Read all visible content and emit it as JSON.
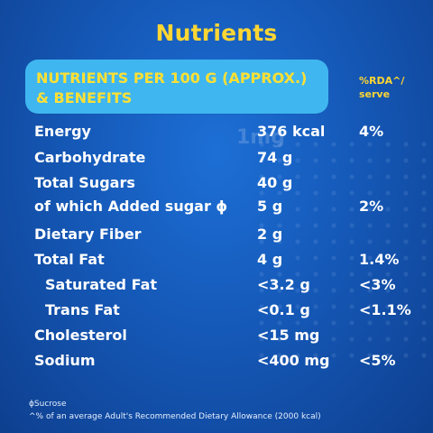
{
  "title": "Nutrients",
  "header": {
    "line1": "NUTRIENTS PER 100 G (APPROX.)",
    "line2": "& BENEFITS",
    "rda_line1": "%RDA^/",
    "rda_line2": "serve"
  },
  "watermark": "1mg",
  "rows": [
    {
      "name": "Energy",
      "value": "376 kcal",
      "rda": "4%"
    },
    {
      "name": "Carbohydrate",
      "value": "74 g",
      "rda": ""
    },
    {
      "name": "Total Sugars",
      "value": "40 g",
      "rda": ""
    },
    {
      "name": "of which Added sugar ϕ",
      "value": "5 g",
      "rda": "2%"
    },
    {
      "name": "Dietary Fiber",
      "value": "2 g",
      "rda": ""
    },
    {
      "name": "Total Fat",
      "value": "4 g",
      "rda": "1.4%"
    },
    {
      "name": "Saturated Fat",
      "value": "<3.2 g",
      "rda": "<3%"
    },
    {
      "name": "Trans Fat",
      "value": "<0.1 g",
      "rda": "<1.1%"
    },
    {
      "name": "Cholesterol",
      "value": "<15 mg",
      "rda": ""
    },
    {
      "name": "Sodium",
      "value": "<400 mg",
      "rda": "<5%"
    }
  ],
  "footnotes": {
    "sucrose": "ϕSucrose",
    "rda_note": "^% of an average Adult's Recommended Dietary Allowance (2000 kcal)"
  },
  "colors": {
    "background": "#1559b8",
    "title": "#ffd633",
    "header_pill": "#3fb6f0",
    "text": "#ffffff"
  }
}
